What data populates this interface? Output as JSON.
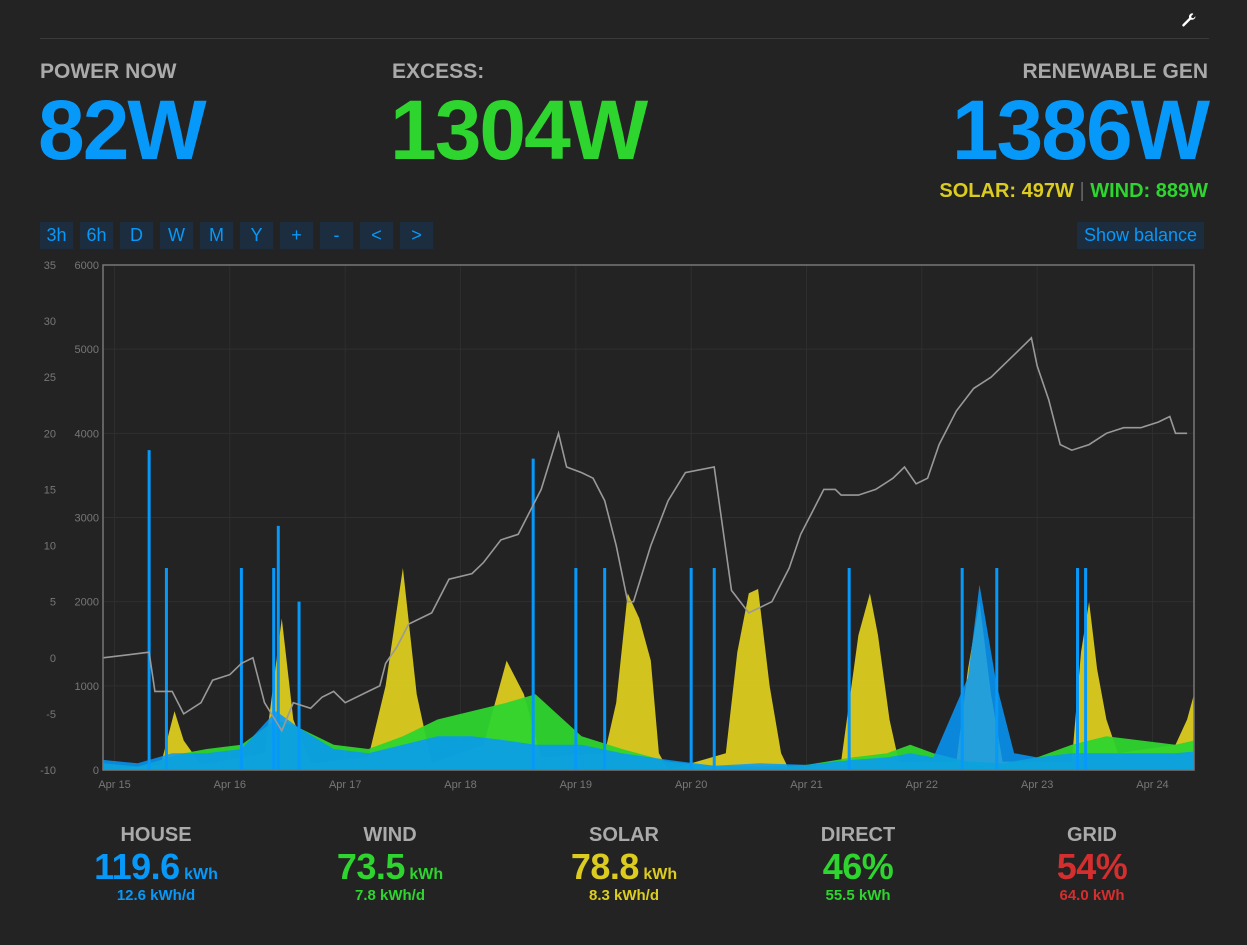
{
  "header": {
    "settings_icon": "wrench-icon"
  },
  "power_now": {
    "label": "POWER NOW",
    "value": "82W"
  },
  "excess": {
    "label": "EXCESS:",
    "value": "1304W"
  },
  "renewable": {
    "label": "RENEWABLE GEN",
    "value": "1386W",
    "solar_text": "SOLAR: 497W",
    "separator": "|",
    "wind_text": "WIND: 889W"
  },
  "toolbar": {
    "buttons": [
      "3h",
      "6h",
      "D",
      "W",
      "M",
      "Y",
      "+",
      "-",
      "<",
      ">"
    ],
    "balance_label": "Show balance"
  },
  "colors": {
    "house": "#0699fa",
    "wind": "#2ed52e",
    "solar": "#dccc1f",
    "grid": "#d52e2e",
    "balance": "#999999"
  },
  "chart_data": {
    "type": "area",
    "x_ticks": [
      "Apr 15",
      "Apr 16",
      "Apr 17",
      "Apr 18",
      "Apr 19",
      "Apr 20",
      "Apr 21",
      "Apr 22",
      "Apr 23",
      "Apr 24"
    ],
    "x_range_days": [
      14.9,
      24.36
    ],
    "y_left_ticks": [
      "35",
      "30",
      "25",
      "20",
      "15",
      "10",
      "5",
      "0",
      "-5",
      "-10"
    ],
    "y_left_range": [
      -10,
      35
    ],
    "y_right_ticks": [
      "6000",
      "5000",
      "4000",
      "3000",
      "2000",
      "1000",
      "0"
    ],
    "y_right_range": [
      0,
      6000
    ],
    "grid": true,
    "series": [
      {
        "name": "SOLAR",
        "axis": "right",
        "points": [
          [
            14.9,
            0
          ],
          [
            15.4,
            60
          ],
          [
            15.52,
            700
          ],
          [
            15.6,
            350
          ],
          [
            15.75,
            60
          ],
          [
            16.3,
            200
          ],
          [
            16.45,
            1800
          ],
          [
            16.55,
            600
          ],
          [
            16.7,
            80
          ],
          [
            17.2,
            150
          ],
          [
            17.35,
            1000
          ],
          [
            17.5,
            2400
          ],
          [
            17.62,
            900
          ],
          [
            17.75,
            80
          ],
          [
            18.2,
            300
          ],
          [
            18.4,
            1300
          ],
          [
            18.55,
            900
          ],
          [
            18.7,
            150
          ],
          [
            19.25,
            200
          ],
          [
            19.35,
            800
          ],
          [
            19.45,
            2100
          ],
          [
            19.55,
            1800
          ],
          [
            19.65,
            1300
          ],
          [
            19.72,
            200
          ],
          [
            19.8,
            0
          ],
          [
            20.3,
            200
          ],
          [
            20.4,
            1400
          ],
          [
            20.5,
            2100
          ],
          [
            20.58,
            2150
          ],
          [
            20.68,
            1000
          ],
          [
            20.78,
            200
          ],
          [
            20.85,
            0
          ],
          [
            21.3,
            100
          ],
          [
            21.45,
            1600
          ],
          [
            21.55,
            2100
          ],
          [
            21.62,
            1600
          ],
          [
            21.72,
            600
          ],
          [
            21.8,
            100
          ],
          [
            22.3,
            100
          ],
          [
            22.4,
            1200
          ],
          [
            22.5,
            2000
          ],
          [
            22.6,
            900
          ],
          [
            22.7,
            100
          ],
          [
            23.3,
            100
          ],
          [
            23.38,
            1400
          ],
          [
            23.45,
            2000
          ],
          [
            23.52,
            1200
          ],
          [
            23.6,
            600
          ],
          [
            23.7,
            200
          ],
          [
            24.2,
            300
          ],
          [
            24.3,
            600
          ],
          [
            24.36,
            900
          ]
        ]
      },
      {
        "name": "WIND",
        "axis": "right",
        "points": [
          [
            14.9,
            80
          ],
          [
            15.2,
            40
          ],
          [
            15.35,
            100
          ],
          [
            15.6,
            200
          ],
          [
            15.8,
            250
          ],
          [
            16.1,
            300
          ],
          [
            16.4,
            600
          ],
          [
            16.6,
            500
          ],
          [
            16.9,
            300
          ],
          [
            17.2,
            250
          ],
          [
            17.5,
            400
          ],
          [
            17.8,
            600
          ],
          [
            18.1,
            700
          ],
          [
            18.4,
            800
          ],
          [
            18.65,
            900
          ],
          [
            18.85,
            650
          ],
          [
            19.05,
            400
          ],
          [
            19.4,
            250
          ],
          [
            19.8,
            100
          ],
          [
            20.2,
            50
          ],
          [
            20.6,
            40
          ],
          [
            21.0,
            60
          ],
          [
            21.4,
            150
          ],
          [
            21.7,
            200
          ],
          [
            21.9,
            300
          ],
          [
            22.1,
            200
          ],
          [
            22.4,
            100
          ],
          [
            22.7,
            80
          ],
          [
            23.0,
            150
          ],
          [
            23.3,
            300
          ],
          [
            23.6,
            400
          ],
          [
            23.9,
            350
          ],
          [
            24.2,
            300
          ],
          [
            24.36,
            350
          ]
        ]
      },
      {
        "name": "HOUSE",
        "axis": "right",
        "points": [
          [
            14.9,
            120
          ],
          [
            15.2,
            80
          ],
          [
            15.5,
            200
          ],
          [
            15.8,
            200
          ],
          [
            16.1,
            250
          ],
          [
            16.4,
            700
          ],
          [
            16.6,
            500
          ],
          [
            16.9,
            250
          ],
          [
            17.2,
            200
          ],
          [
            17.5,
            300
          ],
          [
            17.8,
            400
          ],
          [
            18.1,
            400
          ],
          [
            18.4,
            350
          ],
          [
            18.65,
            300
          ],
          [
            18.85,
            300
          ],
          [
            19.05,
            300
          ],
          [
            19.4,
            200
          ],
          [
            19.8,
            120
          ],
          [
            20.2,
            50
          ],
          [
            20.6,
            80
          ],
          [
            21.0,
            60
          ],
          [
            21.4,
            120
          ],
          [
            21.7,
            150
          ],
          [
            21.9,
            200
          ],
          [
            22.1,
            150
          ],
          [
            22.4,
            1100
          ],
          [
            22.5,
            2200
          ],
          [
            22.65,
            1000
          ],
          [
            22.8,
            200
          ],
          [
            23.0,
            150
          ],
          [
            23.3,
            200
          ],
          [
            23.6,
            200
          ],
          [
            23.9,
            200
          ],
          [
            24.2,
            200
          ],
          [
            24.36,
            220
          ]
        ]
      },
      {
        "name": "HOUSE_PEAKS",
        "axis": "right",
        "points": [
          [
            15.3,
            3800
          ],
          [
            15.45,
            2400
          ],
          [
            16.1,
            2400
          ],
          [
            16.38,
            2400
          ],
          [
            16.42,
            2900
          ],
          [
            16.6,
            2000
          ],
          [
            18.63,
            3700
          ],
          [
            19.0,
            2400
          ],
          [
            19.25,
            2400
          ],
          [
            20.0,
            2400
          ],
          [
            20.2,
            2400
          ],
          [
            21.37,
            2400
          ],
          [
            22.35,
            2400
          ],
          [
            22.65,
            2400
          ],
          [
            23.35,
            2400
          ],
          [
            23.42,
            2400
          ]
        ]
      },
      {
        "name": "BALANCE",
        "axis": "left",
        "points": [
          [
            14.9,
            0
          ],
          [
            15.3,
            0.5
          ],
          [
            15.35,
            -3
          ],
          [
            15.5,
            -3
          ],
          [
            15.6,
            -5
          ],
          [
            15.75,
            -4
          ],
          [
            15.85,
            -2
          ],
          [
            16.0,
            -1.5
          ],
          [
            16.1,
            -0.5
          ],
          [
            16.2,
            0
          ],
          [
            16.3,
            -4
          ],
          [
            16.45,
            -6.5
          ],
          [
            16.55,
            -4
          ],
          [
            16.7,
            -4.5
          ],
          [
            16.8,
            -3.5
          ],
          [
            16.9,
            -3
          ],
          [
            17.0,
            -4
          ],
          [
            17.2,
            -3
          ],
          [
            17.3,
            -2.5
          ],
          [
            17.35,
            -0.5
          ],
          [
            17.45,
            1
          ],
          [
            17.55,
            3
          ],
          [
            17.75,
            4
          ],
          [
            17.9,
            7
          ],
          [
            18.1,
            7.5
          ],
          [
            18.2,
            8.5
          ],
          [
            18.35,
            10.5
          ],
          [
            18.5,
            11
          ],
          [
            18.7,
            15
          ],
          [
            18.85,
            20
          ],
          [
            18.92,
            17
          ],
          [
            19.05,
            16.5
          ],
          [
            19.15,
            16
          ],
          [
            19.25,
            14
          ],
          [
            19.35,
            10
          ],
          [
            19.45,
            5
          ],
          [
            19.5,
            5
          ],
          [
            19.65,
            10
          ],
          [
            19.8,
            14
          ],
          [
            19.95,
            16.5
          ],
          [
            20.2,
            17
          ],
          [
            20.35,
            6
          ],
          [
            20.5,
            4
          ],
          [
            20.6,
            4.5
          ],
          [
            20.7,
            5
          ],
          [
            20.75,
            6
          ],
          [
            20.85,
            8
          ],
          [
            20.95,
            11
          ],
          [
            21.05,
            13
          ],
          [
            21.15,
            15
          ],
          [
            21.25,
            15
          ],
          [
            21.3,
            14.5
          ],
          [
            21.45,
            14.5
          ],
          [
            21.6,
            15
          ],
          [
            21.75,
            16
          ],
          [
            21.85,
            17
          ],
          [
            21.95,
            15.5
          ],
          [
            22.05,
            16
          ],
          [
            22.15,
            19
          ],
          [
            22.3,
            22
          ],
          [
            22.45,
            24
          ],
          [
            22.6,
            25
          ],
          [
            22.75,
            26.5
          ],
          [
            22.85,
            27.5
          ],
          [
            22.95,
            28.5
          ],
          [
            23.0,
            26
          ],
          [
            23.1,
            23
          ],
          [
            23.2,
            19
          ],
          [
            23.3,
            18.5
          ],
          [
            23.45,
            19
          ],
          [
            23.6,
            20
          ],
          [
            23.75,
            20.5
          ],
          [
            23.9,
            20.5
          ],
          [
            24.05,
            21
          ],
          [
            24.15,
            21.5
          ],
          [
            24.2,
            20
          ],
          [
            24.3,
            20
          ],
          [
            24.4,
            22.5
          ],
          [
            24.5,
            26
          ],
          [
            24.6,
            29
          ],
          [
            24.7,
            30.5
          ],
          [
            24.8,
            31.5
          ],
          [
            24.9,
            30.5
          ],
          [
            25.0,
            31.5
          ],
          [
            25.15,
            32
          ],
          [
            25.25,
            33
          ],
          [
            25.36,
            33
          ]
        ]
      }
    ]
  },
  "summary": {
    "house": {
      "title": "HOUSE",
      "value": "119.6",
      "unit": "kWh",
      "daily": "12.6 kWh/d"
    },
    "wind": {
      "title": "WIND",
      "value": "73.5",
      "unit": "kWh",
      "daily": "7.8 kWh/d"
    },
    "solar": {
      "title": "SOLAR",
      "value": "78.8",
      "unit": "kWh",
      "daily": "8.3 kWh/d"
    },
    "direct": {
      "title": "DIRECT",
      "value": "46%",
      "sub": "55.5 kWh"
    },
    "grid": {
      "title": "GRID",
      "value": "54%",
      "sub": "64.0 kWh"
    }
  }
}
